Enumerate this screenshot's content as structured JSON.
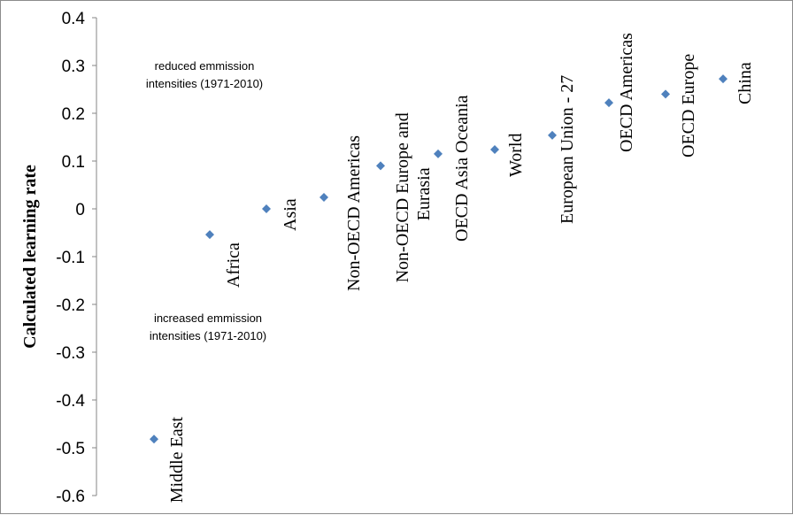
{
  "chart_data": {
    "type": "scatter",
    "ylabel": "Calculated learning rate",
    "ylim": [
      -0.6,
      0.4
    ],
    "yticks": [
      "0.4",
      "0.3",
      "0.2",
      "0.1",
      "0",
      "-0.1",
      "-0.2",
      "-0.3",
      "-0.4",
      "-0.5",
      "-0.6"
    ],
    "grid": false,
    "marker_color": "#4f81bd",
    "points": [
      {
        "label": "Middle East",
        "y": -0.482
      },
      {
        "label": "Africa",
        "y": -0.054
      },
      {
        "label": "Asia",
        "y": 0.0
      },
      {
        "label": "Non-OECD Americas",
        "y": 0.024
      },
      {
        "label": "Non-OECD Europe and Eurasia",
        "y": 0.09
      },
      {
        "label": "OECD Asia Oceania",
        "y": 0.115
      },
      {
        "label": "World",
        "y": 0.124
      },
      {
        "label": "European Union - 27",
        "y": 0.154
      },
      {
        "label": "OECD Americas",
        "y": 0.222
      },
      {
        "label": "OECD Europe",
        "y": 0.24
      },
      {
        "label": "China",
        "y": 0.272
      }
    ],
    "annotations": [
      {
        "lines": [
          "reduced emmission",
          "intensities (1971-2010)"
        ]
      },
      {
        "lines": [
          "increased emmission",
          "intensities (1971-2010)"
        ]
      }
    ]
  }
}
